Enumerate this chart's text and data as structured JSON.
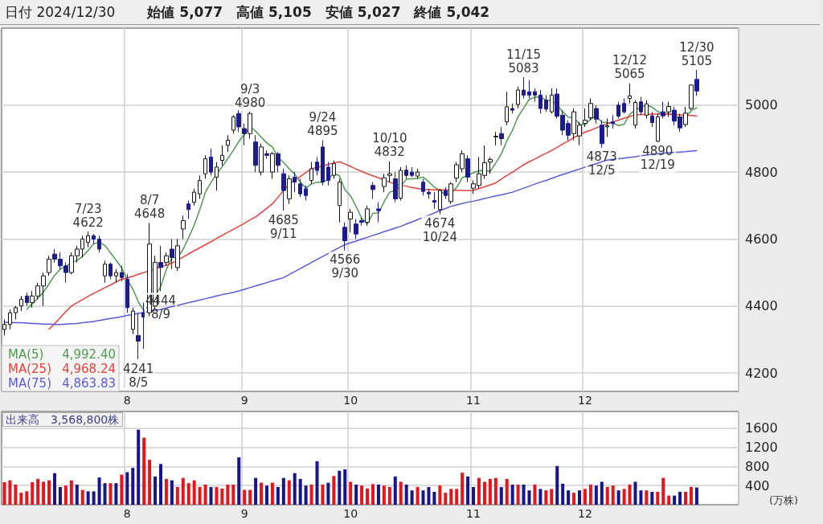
{
  "chart_data": [
    {
      "type": "candlestick",
      "title": "日付 2024/12/30",
      "subtitle": "始値 5,077　高値 5,105　安値 5,027　終値 5,042",
      "categories": [
        null,
        null,
        null,
        null,
        null,
        null,
        null,
        null,
        null,
        null,
        null,
        null,
        null,
        null,
        null,
        null,
        null,
        null,
        null,
        null,
        null,
        null,
        "8",
        null,
        null,
        null,
        null,
        null,
        null,
        null,
        null,
        null,
        null,
        null,
        null,
        null,
        null,
        null,
        null,
        null,
        null,
        null,
        null,
        "9",
        null,
        null,
        null,
        null,
        null,
        null,
        null,
        null,
        null,
        null,
        null,
        null,
        null,
        null,
        null,
        null,
        null,
        null,
        "10",
        null,
        null,
        null,
        null,
        null,
        null,
        null,
        null,
        null,
        null,
        null,
        null,
        null,
        null,
        null,
        null,
        null,
        null,
        null,
        null,
        null,
        "11",
        null,
        null,
        null,
        null,
        null,
        null,
        null,
        null,
        null,
        null,
        null,
        null,
        null,
        null,
        null,
        null,
        null,
        null,
        null,
        "12",
        null,
        null,
        null,
        null,
        null,
        null,
        null,
        null,
        null,
        null,
        null,
        null,
        null,
        null,
        null,
        null,
        null,
        null,
        null,
        null
      ],
      "series": [
        {
          "type": "candlestick",
          "color": "#1c1c8c",
          "colors": [
            "#ffffff",
            "#ffffff",
            "#ffffff",
            "#ffffff",
            "#1c1c8c",
            "#ffffff",
            "#ffffff",
            "#ffffff",
            "#ffffff",
            "#1c1c8c",
            "#1c1c8c",
            "#1c1c8c",
            "#ffffff",
            "#ffffff",
            "#ffffff",
            "#ffffff",
            "#1c1c8c",
            "#1c1c8c",
            "#ffffff",
            "#1c1c8c",
            "#ffffff",
            "#1c1c8c",
            "#1c1c8c",
            "#ffffff",
            "#1c1c8c",
            "#1c1c8c",
            "#ffffff",
            "#ffffff",
            "#1c1c8c",
            "#ffffff",
            "#1c1c8c",
            "#ffffff",
            "#ffffff",
            "#1c1c8c",
            "#ffffff",
            "#ffffff",
            "#ffffff",
            "#1c1c8c",
            "#ffffff",
            "#ffffff",
            "#ffffff",
            "#ffffff",
            "#1c1c8c",
            "#1c1c8c",
            "#ffffff",
            "#1c1c8c",
            "#ffffff",
            "#1c1c8c",
            "#ffffff",
            "#1c1c8c",
            "#1c1c8c",
            "#ffffff",
            "#1c1c8c",
            "#1c1c8c",
            "#1c1c8c",
            "#ffffff",
            "#1c1c8c",
            "#1c1c8c",
            "#1c1c8c",
            "#ffffff",
            "#ffffff",
            "#1c1c8c",
            "#ffffff",
            "#1c1c8c",
            "#1c1c8c",
            "#ffffff",
            "#1c1c8c",
            "#1c1c8c",
            "#ffffff",
            "#ffffff",
            "#1c1c8c",
            "#ffffff",
            "#1c1c8c",
            "#1c1c8c",
            "#ffffff",
            "#1c1c8c",
            "#1c1c8c",
            "#1c1c8c",
            "#ffffff",
            "#1c1c8c",
            "#ffffff",
            "#ffffff",
            "#ffffff",
            "#1c1c8c",
            "#ffffff",
            "#ffffff",
            "#ffffff",
            "#ffffff",
            "#ffffff",
            "#1c1c8c",
            "#ffffff",
            "#1c1c8c",
            "#ffffff",
            "#1c1c8c",
            "#1c1c8c",
            "#1c1c8c",
            "#1c1c8c",
            "#1c1c8c",
            "#ffffff",
            "#1c1c8c",
            "#1c1c8c",
            "#1c1c8c",
            "#ffffff",
            "#ffffff",
            "#ffffff",
            "#ffffff",
            "#1c1c8c",
            "#1c1c8c",
            "#ffffff",
            "#1c1c8c",
            "#1c1c8c",
            "#1c1c8c",
            "#ffffff",
            "#ffffff",
            "#1c1c8c",
            "#ffffff",
            "#1c1c8c",
            "#ffffff",
            "#1c1c8c",
            "#ffffff",
            "#1c1c8c",
            "#1c1c8c",
            "#ffffff",
            "#ffffff",
            "#1c1c8c"
          ],
          "ohlc": [
            [
              4330,
              4360,
              4312,
              4345
            ],
            [
              4345,
              4390,
              4330,
              4380
            ],
            [
              4380,
              4400,
              4360,
              4395
            ],
            [
              4400,
              4430,
              4385,
              4420
            ],
            [
              4430,
              4440,
              4400,
              4410
            ],
            [
              4410,
              4445,
              4395,
              4430
            ],
            [
              4430,
              4470,
              4420,
              4460
            ],
            [
              4460,
              4500,
              4400,
              4490
            ],
            [
              4500,
              4550,
              4490,
              4540
            ],
            [
              4555,
              4570,
              4530,
              4540
            ],
            [
              4540,
              4560,
              4510,
              4520
            ],
            [
              4520,
              4530,
              4470,
              4500
            ],
            [
              4500,
              4560,
              4495,
              4550
            ],
            [
              4550,
              4580,
              4530,
              4570
            ],
            [
              4570,
              4610,
              4545,
              4600
            ],
            [
              4590,
              4622,
              4575,
              4610
            ],
            [
              4610,
              4615,
              4585,
              4600
            ],
            [
              4600,
              4610,
              4560,
              4570
            ],
            [
              4490,
              4535,
              4470,
              4525
            ],
            [
              4525,
              4530,
              4480,
              4490
            ],
            [
              4490,
              4510,
              4470,
              4500
            ],
            [
              4500,
              4520,
              4475,
              4485
            ],
            [
              4480,
              4495,
              4380,
              4395
            ],
            [
              4330,
              4395,
              4315,
              4385
            ],
            [
              4312,
              4380,
              4241,
              4295
            ],
            [
              4380,
              4410,
              4272,
              4367
            ],
            [
              4380,
              4648,
              4370,
              4585
            ],
            [
              4400,
              4550,
              4390,
              4530
            ],
            [
              4530,
              4580,
              4444,
              4515
            ],
            [
              4530,
              4560,
              4520,
              4550
            ],
            [
              4570,
              4600,
              4510,
              4545
            ],
            [
              4515,
              4600,
              4505,
              4580
            ],
            [
              4630,
              4670,
              4600,
              4655
            ],
            [
              4705,
              4715,
              4660,
              4688
            ],
            [
              4710,
              4750,
              4700,
              4740
            ],
            [
              4735,
              4790,
              4720,
              4775
            ],
            [
              4795,
              4850,
              4780,
              4840
            ],
            [
              4845,
              4870,
              4790,
              4800
            ],
            [
              4785,
              4830,
              4745,
              4815
            ],
            [
              4835,
              4880,
              4820,
              4850
            ],
            [
              4880,
              4910,
              4860,
              4895
            ],
            [
              4925,
              4970,
              4915,
              4965
            ],
            [
              4975,
              4985,
              4920,
              4935
            ],
            [
              4930,
              4945,
              4880,
              4915
            ],
            [
              4915,
              4980,
              4900,
              4975
            ],
            [
              4890,
              4910,
              4800,
              4820
            ],
            [
              4800,
              4885,
              4790,
              4875
            ],
            [
              4855,
              4865,
              4840,
              4850
            ],
            [
              4800,
              4860,
              4780,
              4855
            ],
            [
              4855,
              4860,
              4800,
              4820
            ],
            [
              4795,
              4810,
              4685,
              4745
            ],
            [
              4720,
              4790,
              4705,
              4780
            ],
            [
              4785,
              4800,
              4740,
              4770
            ],
            [
              4765,
              4780,
              4725,
              4735
            ],
            [
              4750,
              4760,
              4715,
              4730
            ],
            [
              4775,
              4830,
              4765,
              4810
            ],
            [
              4830,
              4845,
              4790,
              4805
            ],
            [
              4875,
              4895,
              4760,
              4770
            ],
            [
              4815,
              4830,
              4760,
              4775
            ],
            [
              4790,
              4835,
              4780,
              4825
            ],
            [
              4700,
              4780,
              4650,
              4770
            ],
            [
              4635,
              4650,
              4566,
              4595
            ],
            [
              4660,
              4690,
              4620,
              4680
            ],
            [
              4645,
              4660,
              4600,
              4615
            ],
            [
              4655,
              4665,
              4640,
              4650
            ],
            [
              4650,
              4700,
              4640,
              4690
            ],
            [
              4760,
              4770,
              4720,
              4748
            ],
            [
              4690,
              4710,
              4650,
              4685
            ],
            [
              4757,
              4795,
              4740,
              4783
            ],
            [
              4790,
              4832,
              4770,
              4795
            ],
            [
              4780,
              4800,
              4710,
              4720
            ],
            [
              4722,
              4815,
              4715,
              4805
            ],
            [
              4806,
              4820,
              4780,
              4790
            ],
            [
              4800,
              4815,
              4785,
              4790
            ],
            [
              4788,
              4810,
              4780,
              4800
            ],
            [
              4770,
              4780,
              4730,
              4742
            ],
            [
              4740,
              4750,
              4720,
              4735
            ],
            [
              4715,
              4740,
              4690,
              4710
            ],
            [
              4688,
              4750,
              4674,
              4745
            ],
            [
              4745,
              4755,
              4720,
              4730
            ],
            [
              4712,
              4770,
              4705,
              4765
            ],
            [
              4782,
              4830,
              4770,
              4822
            ],
            [
              4810,
              4865,
              4800,
              4855
            ],
            [
              4840,
              4850,
              4770,
              4785
            ],
            [
              4752,
              4775,
              4735,
              4765
            ],
            [
              4760,
              4845,
              4750,
              4795
            ],
            [
              4790,
              4880,
              4780,
              4828
            ],
            [
              4830,
              4845,
              4795,
              4838
            ],
            [
              4905,
              4920,
              4880,
              4907
            ],
            [
              4915,
              4935,
              4880,
              4900
            ],
            [
              4950,
              5040,
              4940,
              4995
            ],
            [
              4990,
              5005,
              4975,
              4985
            ],
            [
              5002,
              5055,
              4990,
              5045
            ],
            [
              5045,
              5083,
              5020,
              5030
            ],
            [
              5040,
              5075,
              5020,
              5030
            ],
            [
              5040,
              5050,
              5010,
              5030
            ],
            [
              5030,
              5045,
              4975,
              4990
            ],
            [
              5015,
              5030,
              4980,
              4988
            ],
            [
              4980,
              5050,
              4975,
              5030
            ],
            [
              5033,
              5050,
              4960,
              4967
            ],
            [
              4970,
              4985,
              4910,
              4925
            ],
            [
              4945,
              4955,
              4895,
              4910
            ],
            [
              4915,
              4990,
              4895,
              4980
            ],
            [
              4908,
              4950,
              4880,
              4940
            ],
            [
              4945,
              4990,
              4935,
              4955
            ],
            [
              4962,
              5020,
              4955,
              5005
            ],
            [
              4990,
              5000,
              4945,
              4958
            ],
            [
              4940,
              4955,
              4873,
              4885
            ],
            [
              4935,
              4960,
              4905,
              4938
            ],
            [
              4950,
              4970,
              4930,
              4945
            ],
            [
              5000,
              5010,
              4960,
              4967
            ],
            [
              5005,
              5020,
              4975,
              4980
            ],
            [
              5020,
              5065,
              5005,
              5028
            ],
            [
              4940,
              5015,
              4930,
              5008
            ],
            [
              5010,
              5025,
              4970,
              4980
            ],
            [
              4970,
              5015,
              4960,
              5004
            ],
            [
              4968,
              4980,
              4935,
              4948
            ],
            [
              4892,
              4975,
              4890,
              4965
            ],
            [
              4980,
              5010,
              4960,
              4968
            ],
            [
              4980,
              5010,
              4965,
              4996
            ],
            [
              4985,
              4995,
              4940,
              4952
            ],
            [
              4965,
              4975,
              4920,
              4932
            ],
            [
              4942,
              4995,
              4935,
              4976
            ],
            [
              4990,
              5062,
              4985,
              5060
            ],
            [
              5077,
              5105,
              5027,
              5042
            ]
          ]
        },
        {
          "type": "line",
          "name": "MA(5)",
          "color": "#4f9a4f",
          "values": [
            null,
            null,
            null,
            null,
            4390,
            4407,
            4423,
            4442,
            4466,
            4492,
            4510,
            4518,
            4530,
            4536,
            4548,
            4566,
            4586,
            4590,
            4581,
            4559,
            4537,
            4514,
            4479,
            4451,
            4412,
            4385,
            4405,
            4432,
            4458,
            4509,
            4545,
            4544,
            4569,
            4604,
            4642,
            4688,
            4740,
            4769,
            4794,
            4816,
            4840,
            4865,
            4892,
            4912,
            4937,
            4922,
            4904,
            4887,
            4875,
            4844,
            4829,
            4810,
            4794,
            4770,
            4752,
            4765,
            4770,
            4770,
            4778,
            4797,
            4789,
            4747,
            4729,
            4697,
            4662,
            4646,
            4677,
            4678,
            4711,
            4740,
            4746,
            4758,
            4779,
            4780,
            4781,
            4785,
            4771,
            4755,
            4746,
            4732,
            4737,
            4754,
            4783,
            4791,
            4798,
            4804,
            4806,
            4802,
            4827,
            4854,
            4894,
            4925,
            4966,
            4991,
            5017,
            5024,
            5025,
            5014,
            5014,
            5001,
            4980,
            4964,
            4962,
            4944,
            4942,
            4958,
            4968,
            4949,
            4948,
            4946,
            4939,
            4943,
            4972,
            4986,
            4993,
            5000,
            4994,
            4981,
            4973,
            4976,
            4966,
            4963,
            4965,
            4983,
            4992
          ]
        },
        {
          "type": "line",
          "name": "MA(25)",
          "color": "#e8413a",
          "values": [
            null,
            null,
            null,
            null,
            null,
            null,
            null,
            null,
            4331,
            4347,
            4365,
            4383,
            4400,
            4410,
            4419,
            4429,
            4438,
            4446,
            4455,
            4463,
            4472,
            4480,
            4484,
            4489,
            4495,
            4500,
            4506,
            4511,
            4517,
            4522,
            4528,
            4537,
            4546,
            4556,
            4565,
            4574,
            4583,
            4592,
            4602,
            4611,
            4620,
            4629,
            4638,
            4647,
            4657,
            4666,
            4679,
            4692,
            4705,
            4725,
            4745,
            4764,
            4776,
            4787,
            4799,
            4810,
            4814,
            4818,
            4823,
            4827,
            4831,
            4824,
            4817,
            4809,
            4802,
            4795,
            4789,
            4783,
            4776,
            4770,
            4764,
            4761,
            4758,
            4754,
            4751,
            4748,
            4748,
            4747,
            4747,
            4747,
            4746,
            4746,
            4745,
            4745,
            4745,
            4751,
            4756,
            4762,
            4768,
            4779,
            4790,
            4800,
            4811,
            4822,
            4831,
            4839,
            4848,
            4856,
            4865,
            4874,
            4884,
            4893,
            4903,
            4912,
            4919,
            4925,
            4932,
            4938,
            4945,
            4950,
            4955,
            4961,
            4966,
            4971,
            4972,
            4972,
            4973,
            4973,
            4974,
            4973,
            4972,
            4971,
            4970,
            4969,
            4968
          ]
        },
        {
          "type": "line",
          "name": "MA(75)",
          "color": "#5a5ae0",
          "values": [
            4352,
            4351,
            4350,
            4350,
            4349,
            4348,
            4347,
            4346,
            4346,
            4345,
            4345,
            4346,
            4347,
            4348,
            4350,
            4352,
            4354,
            4357,
            4360,
            4363,
            4365,
            4368,
            4372,
            4375,
            4378,
            4381,
            4384,
            4387,
            4390,
            4394,
            4398,
            4402,
            4406,
            4410,
            4414,
            4418,
            4422,
            4426,
            4430,
            4434,
            4437,
            4441,
            4445,
            4450,
            4455,
            4460,
            4465,
            4470,
            4475,
            4480,
            4485,
            4494,
            4503,
            4512,
            4521,
            4530,
            4539,
            4548,
            4557,
            4566,
            4575,
            4583,
            4589,
            4594,
            4600,
            4605,
            4611,
            4616,
            4622,
            4627,
            4633,
            4638,
            4645,
            4651,
            4658,
            4665,
            4671,
            4678,
            4685,
            4691,
            4698,
            4702,
            4706,
            4710,
            4713,
            4717,
            4721,
            4725,
            4729,
            4732,
            4736,
            4740,
            4746,
            4752,
            4758,
            4764,
            4770,
            4775,
            4781,
            4787,
            4793,
            4798,
            4804,
            4809,
            4815,
            4820,
            4825,
            4831,
            4836,
            4838,
            4840,
            4842,
            4844,
            4846,
            4849,
            4851,
            4853,
            4855,
            4856,
            4858,
            4859,
            4860,
            4861,
            4863,
            4864
          ]
        }
      ],
      "ylim": [
        4145,
        5230
      ],
      "yticks": [
        4200,
        4400,
        4600,
        4800,
        5000
      ],
      "grid": true,
      "legend": "bottom left",
      "marker": "none",
      "annotations": [
        "4,992.40",
        "4,968.24",
        "4,863.83",
        {
          "text": "7/23\n4622",
          "y": 4622
        },
        {
          "text": "4241\n8/5",
          "y": 4241
        },
        {
          "text": "8/7\n4648",
          "y": 4648
        },
        {
          "text": "4444\n8/9",
          "y": 4444
        },
        {
          "text": "9/3\n4980",
          "y": 4980
        },
        {
          "text": "4685\n9/11",
          "y": 4685
        },
        {
          "text": "9/24\n4895",
          "y": 4895
        },
        {
          "text": "4566\n9/30",
          "y": 4566
        },
        {
          "text": "10/10\n4832",
          "y": 4832
        },
        {
          "text": "4674\n10/24",
          "y": 4674
        },
        {
          "text": "11/15\n5083",
          "y": 5083
        },
        {
          "text": "4873\n12/5",
          "y": 4873
        },
        {
          "text": "12/12\n5065",
          "y": 5065
        },
        {
          "text": "4890\n12/19",
          "y": 4890
        },
        {
          "text": "12/30\n5105",
          "y": 5105
        }
      ]
    },
    {
      "type": "bar",
      "title": "出来高　3,568,800株",
      "ylabel": "(万株)",
      "categories": [
        null,
        null,
        null,
        null,
        null,
        null,
        null,
        null,
        null,
        null,
        null,
        null,
        null,
        null,
        null,
        null,
        null,
        null,
        null,
        null,
        null,
        null,
        "8",
        null,
        null,
        null,
        null,
        null,
        null,
        null,
        null,
        null,
        null,
        null,
        null,
        null,
        null,
        null,
        null,
        null,
        null,
        null,
        null,
        "9",
        null,
        null,
        null,
        null,
        null,
        null,
        null,
        null,
        null,
        null,
        null,
        null,
        null,
        null,
        null,
        null,
        null,
        null,
        "10",
        null,
        null,
        null,
        null,
        null,
        null,
        null,
        null,
        null,
        null,
        null,
        null,
        null,
        null,
        null,
        null,
        null,
        null,
        null,
        null,
        null,
        "11",
        null,
        null,
        null,
        null,
        null,
        null,
        null,
        null,
        null,
        null,
        null,
        null,
        null,
        null,
        null,
        null,
        null,
        null,
        null,
        "12",
        null,
        null,
        null,
        null,
        null,
        null,
        null,
        null,
        null,
        null,
        null,
        null,
        null,
        null,
        null,
        null,
        null,
        null,
        null,
        null
      ],
      "values": [
        470,
        510,
        420,
        250,
        280,
        470,
        540,
        480,
        510,
        660,
        370,
        400,
        510,
        420,
        310,
        280,
        280,
        570,
        450,
        450,
        450,
        630,
        680,
        770,
        1570,
        1400,
        940,
        590,
        850,
        540,
        510,
        370,
        560,
        450,
        510,
        370,
        420,
        370,
        370,
        340,
        420,
        420,
        990,
        310,
        310,
        560,
        460,
        400,
        460,
        370,
        560,
        510,
        660,
        540,
        400,
        420,
        910,
        420,
        460,
        600,
        710,
        740,
        480,
        420,
        400,
        340,
        430,
        420,
        400,
        370,
        590,
        480,
        420,
        300,
        370,
        300,
        370,
        270,
        400,
        250,
        330,
        330,
        670,
        590,
        370,
        560,
        480,
        540,
        560,
        370,
        540,
        420,
        420,
        420,
        300,
        420,
        330,
        300,
        330,
        810,
        440,
        300,
        250,
        300,
        330,
        420,
        400,
        480,
        370,
        400,
        300,
        330,
        420,
        480,
        300,
        300,
        270,
        270,
        560,
        190,
        190,
        270,
        270,
        370,
        360
      ],
      "colors": [
        "#e8141c",
        "#e8141c",
        "#e8141c",
        "#e8141c",
        "#e8141c",
        "#e8141c",
        "#e8141c",
        "#e8141c",
        "#e8141c",
        "#15158c",
        "#15158c",
        "#e8141c",
        "#e8141c",
        "#15158c",
        "#e8141c",
        "#15158c",
        "#15158c",
        "#15158c",
        "#15158c",
        "#e8141c",
        "#15158c",
        "#e8141c",
        "#15158c",
        "#15158c",
        "#15158c",
        "#e8141c",
        "#e8141c",
        "#15158c",
        "#15158c",
        "#e8141c",
        "#15158c",
        "#e8141c",
        "#e8141c",
        "#e8141c",
        "#e8141c",
        "#e8141c",
        "#e8141c",
        "#15158c",
        "#e8141c",
        "#e8141c",
        "#e8141c",
        "#e8141c",
        "#15158c",
        "#e8141c",
        "#e8141c",
        "#15158c",
        "#e8141c",
        "#15158c",
        "#e8141c",
        "#15158c",
        "#15158c",
        "#e8141c",
        "#15158c",
        "#15158c",
        "#15158c",
        "#e8141c",
        "#15158c",
        "#e8141c",
        "#15158c",
        "#e8141c",
        "#15158c",
        "#15158c",
        "#e8141c",
        "#15158c",
        "#e8141c",
        "#e8141c",
        "#e8141c",
        "#15158c",
        "#e8141c",
        "#e8141c",
        "#15158c",
        "#e8141c",
        "#15158c",
        "#15158c",
        "#e8141c",
        "#15158c",
        "#15158c",
        "#15158c",
        "#e8141c",
        "#e8141c",
        "#e8141c",
        "#e8141c",
        "#e8141c",
        "#15158c",
        "#15158c",
        "#e8141c",
        "#e8141c",
        "#e8141c",
        "#e8141c",
        "#15158c",
        "#e8141c",
        "#15158c",
        "#e8141c",
        "#15158c",
        "#15158c",
        "#e8141c",
        "#15158c",
        "#e8141c",
        "#e8141c",
        "#15158c",
        "#15158c",
        "#15158c",
        "#e8141c",
        "#15158c",
        "#e8141c",
        "#e8141c",
        "#15158c",
        "#15158c",
        "#e8141c",
        "#e8141c",
        "#15158c",
        "#e8141c",
        "#e8141c",
        "#15158c",
        "#15158c",
        "#e8141c",
        "#15158c",
        "#e8141c",
        "#e8141c",
        "#e8141c",
        "#15158c",
        "#15158c",
        "#e8141c",
        "#e8141c",
        "#15158c"
      ],
      "ylim": [
        0,
        1950
      ],
      "yticks": [
        400,
        800,
        1200,
        1600
      ],
      "grid": true
    }
  ]
}
